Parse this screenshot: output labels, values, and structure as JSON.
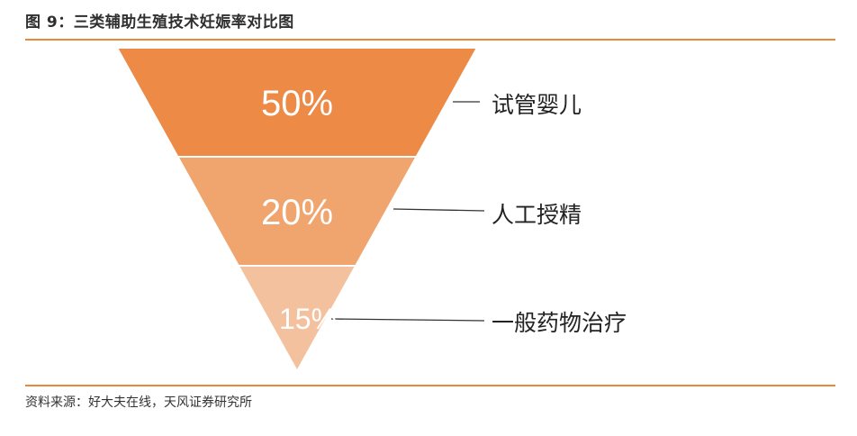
{
  "figure": {
    "title": "图 9：三类辅助生殖技术妊娠率对比图",
    "source": "资料来源：好大夫在线，天风证券研究所"
  },
  "chart_data": {
    "type": "funnel",
    "title": "图 9：三类辅助生殖技术妊娠率对比图",
    "categories": [
      "试管婴儿",
      "人工授精",
      "一般药物治疗"
    ],
    "values": [
      50,
      20,
      15
    ],
    "value_labels": [
      "50%",
      "20%",
      "15%"
    ],
    "unit": "%",
    "colors": [
      "#EC8A46",
      "#F0A56F",
      "#F4C19E"
    ],
    "grid": false,
    "legend": "none"
  }
}
